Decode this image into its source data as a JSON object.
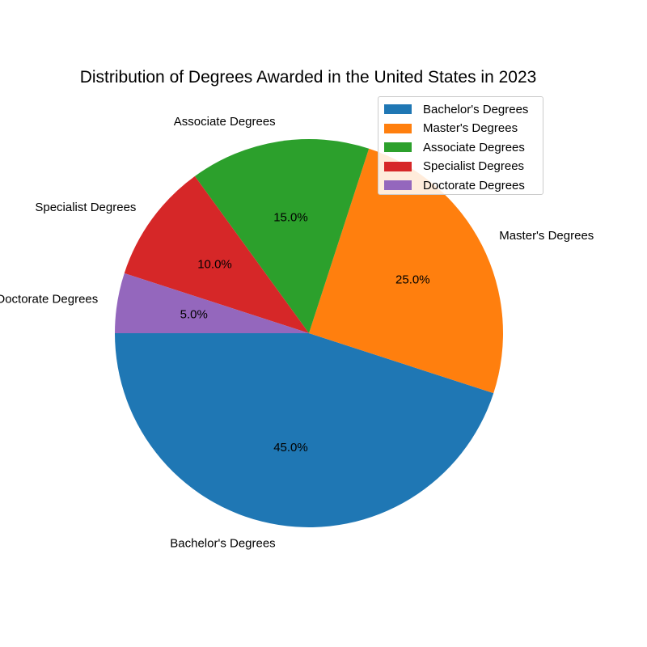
{
  "chart_data": {
    "type": "pie",
    "title": "Distribution of Degrees Awarded in the United States in 2023",
    "categories": [
      "Bachelor's Degrees",
      "Master's Degrees",
      "Associate Degrees",
      "Specialist Degrees",
      "Doctorate Degrees"
    ],
    "values": [
      45.0,
      25.0,
      15.0,
      10.0,
      5.0
    ],
    "percent_labels": [
      "45.0%",
      "25.0%",
      "15.0%",
      "10.0%",
      "5.0%"
    ],
    "colors": [
      "#1f77b4",
      "#ff7f0e",
      "#2ca02c",
      "#d62728",
      "#9467bd"
    ],
    "start_angle_deg": 180,
    "direction": "counterclockwise",
    "legend": {
      "position": "top-right",
      "entries": [
        "Bachelor's Degrees",
        "Master's Degrees",
        "Associate Degrees",
        "Specialist Degrees",
        "Doctorate Degrees"
      ]
    }
  }
}
